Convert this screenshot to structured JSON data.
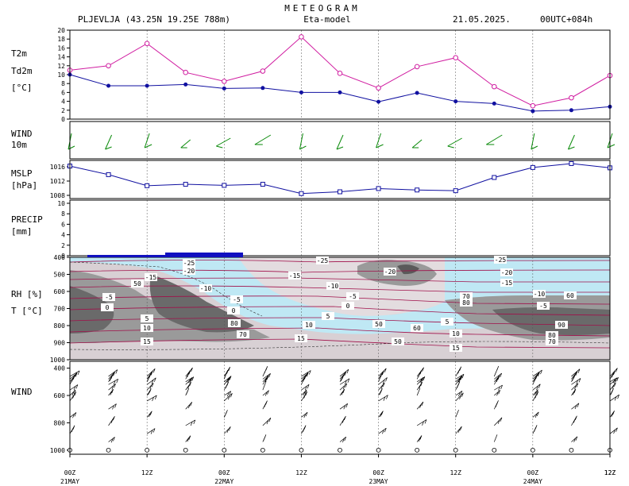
{
  "header": {
    "title": "METEOGRAM",
    "station": "PLJEVLJA (43.25N 19.25E  788m)",
    "model": "Eta-model",
    "date": "21.05.2025.",
    "run": "00UTC+084h"
  },
  "panels": {
    "temp": {
      "label1": "T2m",
      "label2": "Td2m",
      "unit": "[°C]",
      "label1_color": "#d01ca0",
      "label2_color": "#1010a0"
    },
    "wind10": {
      "label1": "WIND",
      "label2": "10m",
      "color": "#0a8a0a"
    },
    "mslp": {
      "label1": "MSLP",
      "label2": "[hPa]",
      "color": "#1010a0"
    },
    "precip": {
      "label1": "PRECIP",
      "label2": "[mm]",
      "color": "#1010a0"
    },
    "rh": {
      "label1": "RH [%]",
      "label2": "T [°C]",
      "label1_color": "#000000",
      "label2_color": "#b01010"
    },
    "windprof": {
      "label1": "WIND"
    }
  },
  "x_axis": {
    "ticks": [
      "00Z",
      "12Z",
      "00Z",
      "12Z",
      "00Z",
      "12Z",
      "00Z",
      "12Z"
    ],
    "dates": [
      "21MAY",
      "22MAY",
      "23MAY",
      "24MAY"
    ]
  },
  "chart_data": [
    {
      "type": "line",
      "panel": "temperature",
      "x_hours": [
        0,
        6,
        12,
        18,
        24,
        30,
        36,
        42,
        48,
        54,
        60,
        66,
        72,
        78,
        84
      ],
      "series": [
        {
          "name": "T2m",
          "color": "#d01ca0",
          "values": [
            11,
            12,
            17,
            10.5,
            8.5,
            10.8,
            18.5,
            10.3,
            7,
            11.8,
            13.8,
            7.3,
            3,
            4.8,
            9.8
          ]
        },
        {
          "name": "Td2m",
          "color": "#1010a0",
          "values": [
            10,
            7.5,
            7.5,
            7.8,
            6.9,
            7,
            6,
            6,
            3.9,
            5.9,
            4,
            3.5,
            1.8,
            2,
            2.8
          ]
        }
      ],
      "ylim": [
        0,
        20
      ],
      "yticks": [
        0,
        2,
        4,
        6,
        8,
        10,
        12,
        14,
        16,
        18,
        20
      ]
    },
    {
      "type": "line",
      "panel": "mslp",
      "x_hours": [
        0,
        6,
        12,
        18,
        24,
        30,
        36,
        42,
        48,
        54,
        60,
        66,
        72,
        78,
        84
      ],
      "series": [
        {
          "name": "MSLP",
          "color": "#1010a0",
          "values": [
            1016.2,
            1013.8,
            1010.7,
            1011.1,
            1010.8,
            1011.1,
            1008.5,
            1009,
            1009.9,
            1009.5,
            1009.3,
            1013,
            1015.8,
            1016.9,
            1015.7
          ]
        }
      ],
      "ylim": [
        1008,
        1016
      ],
      "yticks": [
        1008,
        1012,
        1016
      ]
    },
    {
      "type": "bar",
      "panel": "precip",
      "x_hours": [
        0,
        6,
        12,
        18,
        24,
        30,
        36,
        42,
        48,
        54,
        60,
        66,
        72,
        78,
        84
      ],
      "values": [
        0,
        0,
        0,
        0,
        0,
        0,
        0,
        0,
        0,
        0,
        0,
        0,
        0,
        0,
        0
      ],
      "ylim": [
        0,
        10
      ],
      "yticks": [
        0,
        2,
        4,
        6,
        8,
        10
      ]
    },
    {
      "type": "heatmap",
      "panel": "rh_temperature",
      "y_levels_hpa": [
        400,
        500,
        600,
        700,
        800,
        900,
        1000
      ],
      "temperature_contour_labels": [
        "-25",
        "-20",
        "-15",
        "-10",
        "-5",
        "0",
        "5",
        "10",
        "15"
      ],
      "rh_contour_labels": [
        "50",
        "60",
        "70",
        "80",
        "90"
      ]
    },
    {
      "type": "scatter",
      "panel": "wind_profile",
      "y_levels_hpa": [
        400,
        600,
        800,
        1000
      ],
      "yticks": [
        400,
        600,
        800,
        1000
      ]
    }
  ]
}
